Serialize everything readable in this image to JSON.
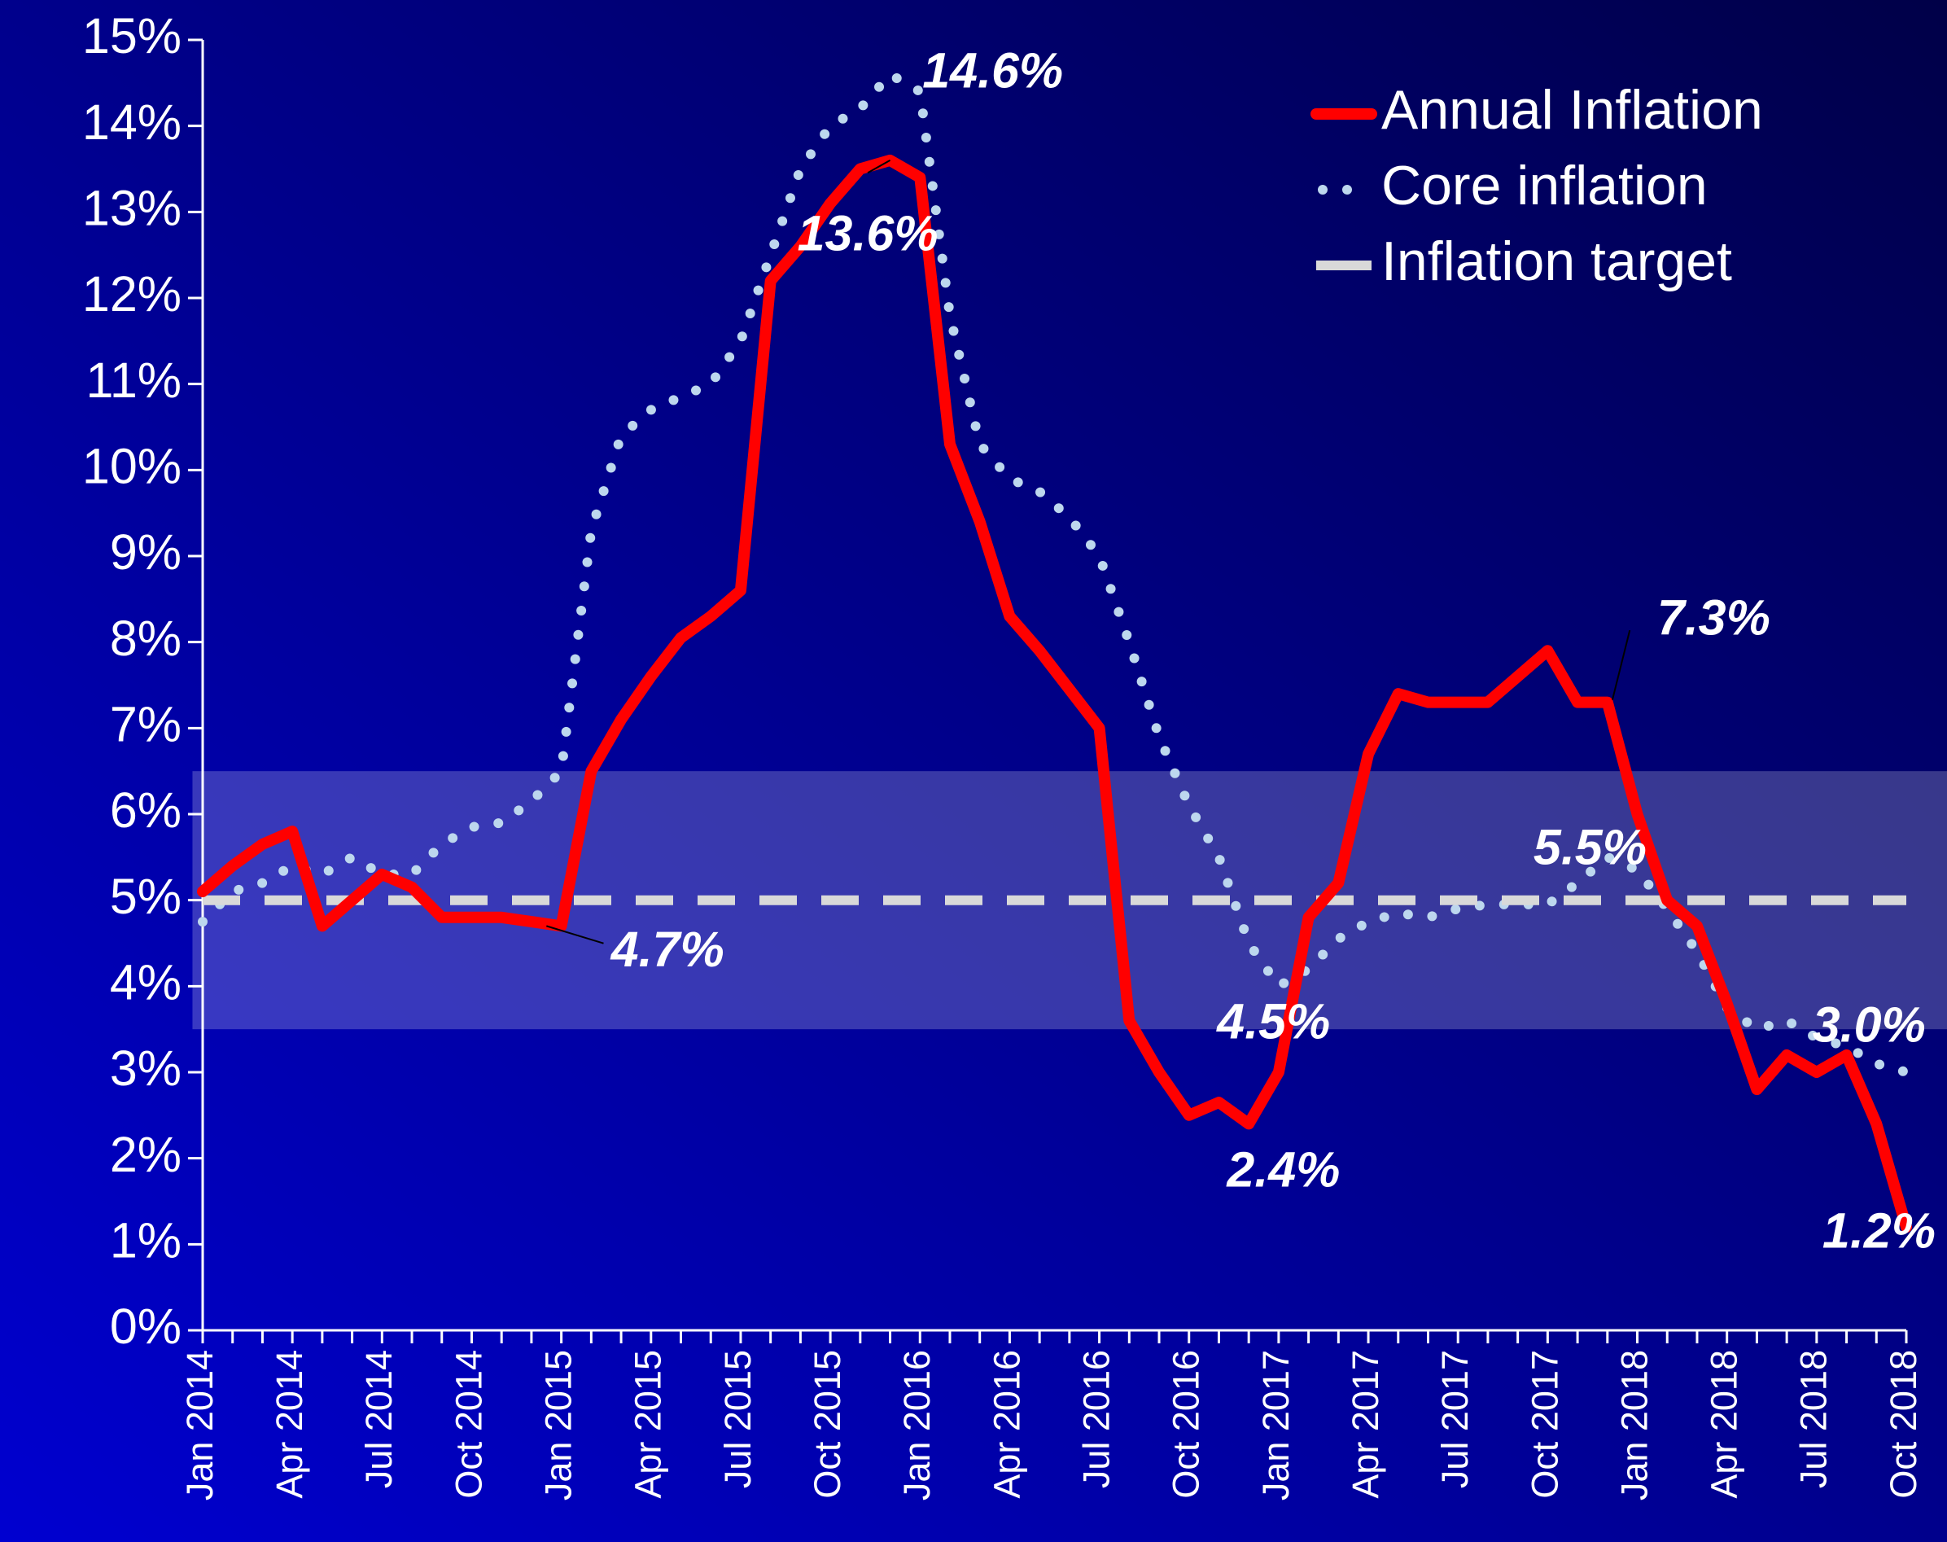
{
  "chart_data": {
    "type": "line",
    "categories": [
      "Jan 2014",
      null,
      null,
      "Apr 2014",
      null,
      null,
      "Jul 2014",
      null,
      null,
      "Oct 2014",
      null,
      null,
      "Jan 2015",
      null,
      null,
      "Apr 2015",
      null,
      null,
      "Jul 2015",
      null,
      null,
      "Oct 2015",
      null,
      null,
      "Jan 2016",
      null,
      null,
      "Apr 2016",
      null,
      null,
      "Jul 2016",
      null,
      null,
      "Oct 2016",
      null,
      null,
      "Jan 2017",
      null,
      null,
      "Apr 2017",
      null,
      null,
      "Jul 2017",
      null,
      null,
      "Oct 2017",
      null,
      null,
      "Jan 2018",
      null,
      null,
      "Apr 2018",
      null,
      null,
      "Jul 2018",
      null,
      null,
      "Oct 2018"
    ],
    "series": [
      {
        "name": "Annual Inflation",
        "color": "#ff0000",
        "style": "solid",
        "values": [
          5.1,
          5.4,
          5.65,
          5.8,
          4.7,
          5.0,
          5.3,
          5.15,
          4.8,
          4.8,
          4.8,
          4.75,
          4.7,
          6.5,
          7.1,
          7.6,
          8.05,
          8.3,
          8.6,
          12.2,
          12.6,
          13.1,
          13.5,
          13.6,
          13.4,
          10.3,
          9.4,
          8.3,
          7.9,
          7.45,
          7.0,
          3.6,
          3.0,
          2.5,
          2.65,
          2.4,
          3.0,
          4.8,
          5.2,
          6.7,
          7.4,
          7.3,
          7.3,
          7.3,
          7.6,
          7.9,
          7.3,
          7.3,
          6.0,
          5.0,
          4.7,
          3.8,
          2.8,
          3.2,
          3.0,
          3.2,
          2.4,
          1.2
        ],
        "value_labels": [
          null,
          null,
          null,
          null,
          null,
          null,
          null,
          null,
          null,
          null,
          null,
          null,
          "4.7%",
          null,
          null,
          null,
          null,
          null,
          null,
          null,
          null,
          null,
          null,
          "13.6%",
          null,
          null,
          null,
          null,
          null,
          null,
          null,
          null,
          null,
          null,
          null,
          "2.4%",
          null,
          null,
          null,
          null,
          null,
          null,
          null,
          null,
          null,
          null,
          null,
          "7.3%",
          null,
          null,
          null,
          null,
          null,
          null,
          null,
          null,
          null,
          "1.2%"
        ]
      },
      {
        "name": "Core inflation",
        "color": "#bdd7ee",
        "style": "dotted",
        "values": [
          4.75,
          5.1,
          5.2,
          5.4,
          5.3,
          5.5,
          5.3,
          5.3,
          5.65,
          5.85,
          5.9,
          6.15,
          6.5,
          9.3,
          10.4,
          10.7,
          10.85,
          11.0,
          11.5,
          12.5,
          13.5,
          14.0,
          14.2,
          14.6,
          14.4,
          11.8,
          10.3,
          9.9,
          9.75,
          9.45,
          9.0,
          8.0,
          6.9,
          6.1,
          5.5,
          4.5,
          4.0,
          4.2,
          4.55,
          4.75,
          4.85,
          4.8,
          4.9,
          4.95,
          4.95,
          4.95,
          5.2,
          5.5,
          5.35,
          4.9,
          4.4,
          3.75,
          3.5,
          3.6,
          3.4,
          3.3,
          3.1,
          3.0
        ],
        "value_labels": [
          null,
          null,
          null,
          null,
          null,
          null,
          null,
          null,
          null,
          null,
          null,
          null,
          null,
          null,
          null,
          null,
          null,
          null,
          null,
          null,
          null,
          null,
          null,
          "14.6%",
          null,
          null,
          null,
          null,
          null,
          null,
          null,
          null,
          null,
          null,
          null,
          "4.5%",
          null,
          null,
          null,
          null,
          null,
          null,
          null,
          null,
          null,
          null,
          null,
          "5.5%",
          null,
          null,
          null,
          null,
          null,
          null,
          null,
          null,
          null,
          "3.0%"
        ]
      },
      {
        "name": "Inflation target",
        "color": "#d9d9d9",
        "style": "dashed",
        "values": [
          5,
          5,
          5,
          5,
          5,
          5,
          5,
          5,
          5,
          5,
          5,
          5,
          5,
          5,
          5,
          5,
          5,
          5,
          5,
          5,
          5,
          5,
          5,
          5,
          5,
          5,
          5,
          5,
          5,
          5,
          5,
          5,
          5,
          5,
          5,
          5,
          5,
          5,
          5,
          5,
          5,
          5,
          5,
          5,
          5,
          5,
          5,
          5,
          5,
          5,
          5,
          5,
          5,
          5,
          5,
          5,
          5,
          5
        ]
      }
    ],
    "band": [
      3.5,
      6.5
    ],
    "ylim": [
      0,
      15
    ],
    "yticks": [
      {
        "value": 0,
        "label": "0%"
      },
      {
        "value": 1,
        "label": "1%"
      },
      {
        "value": 2,
        "label": "2%"
      },
      {
        "value": 3,
        "label": "3%"
      },
      {
        "value": 4,
        "label": "4%"
      },
      {
        "value": 5,
        "label": "5%"
      },
      {
        "value": 6,
        "label": "6%"
      },
      {
        "value": 7,
        "label": "7%"
      },
      {
        "value": 8,
        "label": "8%"
      },
      {
        "value": 9,
        "label": "9%"
      },
      {
        "value": 10,
        "label": "10%"
      },
      {
        "value": 11,
        "label": "11%"
      },
      {
        "value": 12,
        "label": "12%"
      },
      {
        "value": 13,
        "label": "13%"
      },
      {
        "value": 14,
        "label": "14%"
      },
      {
        "value": 15,
        "label": "15%"
      }
    ],
    "legend": "upper right"
  }
}
